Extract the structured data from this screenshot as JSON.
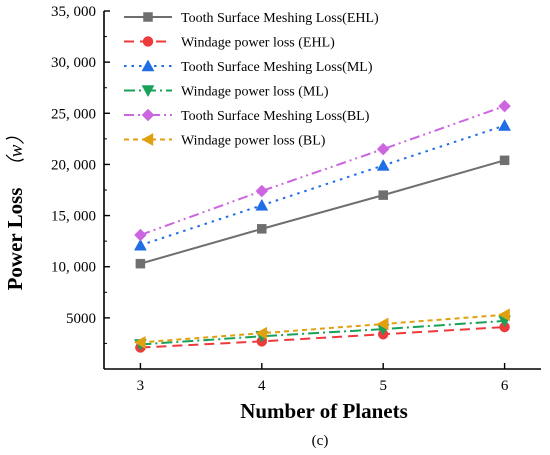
{
  "chart_data": {
    "type": "line",
    "x": [
      3,
      4,
      5,
      6
    ],
    "xlabel": "Number of  Planets",
    "ylabel": "Power  Loss （w）",
    "ylabel_main": "Power  Loss",
    "ylabel_unit": "（w）",
    "caption": "(c)",
    "xlim": [
      2.7,
      6.3
    ],
    "ylim": [
      0,
      35000
    ],
    "x_ticks": [
      3,
      4,
      5,
      6
    ],
    "x_tick_labels": [
      "3",
      "4",
      "5",
      "6"
    ],
    "y_ticks": [
      5000,
      10000,
      15000,
      20000,
      25000,
      30000,
      35000
    ],
    "y_tick_labels": [
      "5000",
      "10, 000",
      "15, 000",
      "20, 000",
      "25, 000",
      "30, 000",
      "35, 000"
    ],
    "grid": false,
    "legend_position": "top-left",
    "series": [
      {
        "name": "Tooth Surface Meshing Loss(EHL)",
        "values": [
          10300,
          13700,
          17000,
          20400
        ],
        "color": "#6f6f6f",
        "dash": "solid",
        "marker": "square"
      },
      {
        "name": "Windage  power loss (EHL)",
        "values": [
          2100,
          2700,
          3400,
          4100
        ],
        "color": "#ee3a3a",
        "dash": "dash",
        "marker": "circle"
      },
      {
        "name": "Tooth Surface Meshing Loss(ML)",
        "values": [
          12100,
          16000,
          19900,
          23800
        ],
        "color": "#1f6ee6",
        "dash": "dot",
        "marker": "triangle-up"
      },
      {
        "name": "Windage  power loss (ML)",
        "values": [
          2400,
          3200,
          3900,
          4700
        ],
        "color": "#19a15a",
        "dash": "dashdot",
        "marker": "triangle-down"
      },
      {
        "name": "Tooth Surface Meshing Loss(BL)",
        "values": [
          13100,
          17400,
          21500,
          25700
        ],
        "color": "#cc66e0",
        "dash": "dashdotdot",
        "marker": "diamond"
      },
      {
        "name": "Windage  power loss (BL)",
        "values": [
          2600,
          3500,
          4400,
          5300
        ],
        "color": "#e0a010",
        "dash": "shortdash",
        "marker": "triangle-left"
      }
    ]
  }
}
